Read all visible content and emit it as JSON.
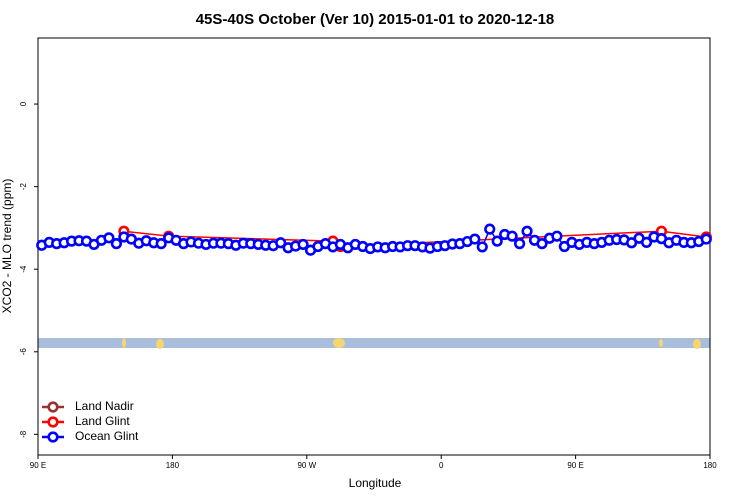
{
  "chart_data": {
    "type": "line",
    "title": "45S-40S October (Ver 10)   2015-01-01 to 2020-12-18",
    "x_label": "Longitude",
    "y_label": "XCO2 - MLO trend (ppm)",
    "xlim": [
      90,
      540
    ],
    "ylim": [
      -8.5,
      1.6
    ],
    "xticks": [
      {
        "value": 90,
        "label": "90 E"
      },
      180,
      {
        "value": 270,
        "label": "90 W"
      },
      {
        "value": 360,
        "label": "0"
      },
      {
        "value": 450,
        "label": "90 E"
      },
      {
        "value": 540,
        "label": "180"
      }
    ],
    "yticks": [
      0,
      -2,
      -4,
      -6,
      -8
    ],
    "legend": "bottom-left",
    "series": [
      {
        "name": "Land Nadir",
        "color": "#993333",
        "x": [],
        "values": []
      },
      {
        "name": "Land Glint",
        "color": "#ff0000",
        "x": [
          147.5,
          177.5,
          287.5,
          292.5,
          507.5,
          537.5
        ],
        "values": [
          -3.08,
          -3.2,
          -3.32,
          -3.45,
          -3.08,
          -3.22
        ]
      },
      {
        "name": "Ocean Glint",
        "color": "#0000ff",
        "x": [
          92.5,
          97.5,
          102.5,
          107.5,
          112.5,
          117.5,
          122.5,
          127.5,
          132.5,
          137.5,
          142.5,
          147.5,
          152.5,
          157.5,
          162.5,
          167.5,
          172.5,
          177.5,
          182.5,
          187.5,
          192.5,
          197.5,
          202.5,
          207.5,
          212.5,
          217.5,
          222.5,
          227.5,
          232.5,
          237.5,
          242.5,
          247.5,
          252.5,
          257.5,
          262.5,
          267.5,
          272.5,
          277.5,
          282.5,
          287.5,
          292.5,
          297.5,
          302.5,
          307.5,
          312.5,
          317.5,
          322.5,
          327.5,
          332.5,
          337.5,
          342.5,
          347.5,
          352.5,
          357.5,
          362.5,
          367.5,
          372.5,
          377.5,
          382.5,
          387.5,
          392.5,
          397.5,
          402.5,
          407.5,
          412.5,
          417.5,
          422.5,
          427.5,
          432.5,
          437.5,
          442.5,
          447.5,
          452.5,
          457.5,
          462.5,
          467.5,
          472.5,
          477.5,
          482.5,
          487.5,
          492.5,
          497.5,
          502.5,
          507.5,
          512.5,
          517.5,
          522.5,
          527.5,
          532.5,
          537.5
        ],
        "values": [
          -3.42,
          -3.35,
          -3.38,
          -3.36,
          -3.32,
          -3.31,
          -3.32,
          -3.4,
          -3.3,
          -3.24,
          -3.38,
          -3.22,
          -3.27,
          -3.37,
          -3.31,
          -3.36,
          -3.38,
          -3.24,
          -3.3,
          -3.38,
          -3.34,
          -3.37,
          -3.4,
          -3.37,
          -3.37,
          -3.38,
          -3.42,
          -3.37,
          -3.38,
          -3.4,
          -3.42,
          -3.43,
          -3.36,
          -3.48,
          -3.44,
          -3.4,
          -3.54,
          -3.45,
          -3.38,
          -3.46,
          -3.4,
          -3.48,
          -3.4,
          -3.45,
          -3.5,
          -3.46,
          -3.48,
          -3.45,
          -3.46,
          -3.43,
          -3.43,
          -3.46,
          -3.49,
          -3.45,
          -3.43,
          -3.39,
          -3.38,
          -3.33,
          -3.27,
          -3.46,
          -3.03,
          -3.32,
          -3.16,
          -3.2,
          -3.38,
          -3.08,
          -3.3,
          -3.38,
          -3.25,
          -3.2,
          -3.45,
          -3.35,
          -3.4,
          -3.35,
          -3.38,
          -3.35,
          -3.3,
          -3.28,
          -3.29,
          -3.36,
          -3.25,
          -3.35,
          -3.22,
          -3.26,
          -3.36,
          -3.3,
          -3.35,
          -3.36,
          -3.33,
          -3.27
        ]
      }
    ]
  }
}
